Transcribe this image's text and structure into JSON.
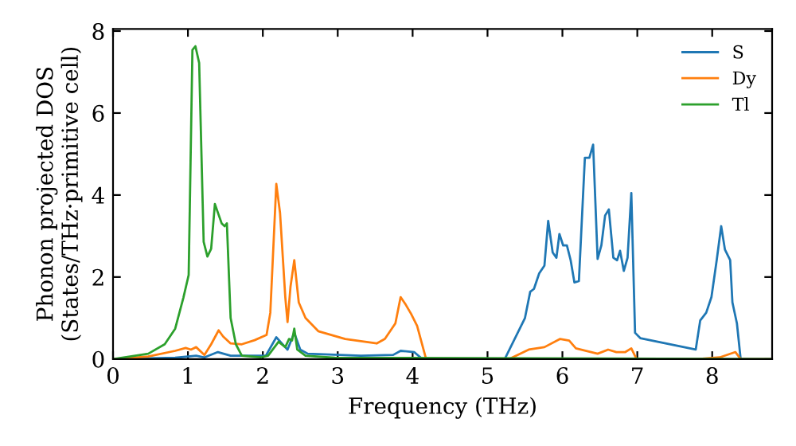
{
  "chart_data": {
    "type": "line",
    "xlabel": "Frequency (THz)",
    "ylabel": "Phonon projected DOS\n(States/THz·primitive cell)",
    "xlim": [
      0,
      8.8
    ],
    "ylim": [
      0,
      8.05
    ],
    "xticks": [
      0,
      1,
      2,
      3,
      4,
      5,
      6,
      7,
      8
    ],
    "yticks": [
      0,
      2,
      4,
      6,
      8
    ],
    "grid": false,
    "legend": "top right",
    "marker": "none",
    "line_style": "solid",
    "series": [
      {
        "name": "S",
        "color": "#1f77b4",
        "x": [
          0,
          0.83,
          1.11,
          1.22,
          1.4,
          1.57,
          2.04,
          2.18,
          2.28,
          2.33,
          2.42,
          2.5,
          2.6,
          3.31,
          3.74,
          3.84,
          4.02,
          4.13,
          5.23,
          5.5,
          5.57,
          5.62,
          5.69,
          5.76,
          5.81,
          5.87,
          5.92,
          5.96,
          6.01,
          6.06,
          6.11,
          6.16,
          6.22,
          6.3,
          6.36,
          6.41,
          6.47,
          6.52,
          6.57,
          6.62,
          6.68,
          6.73,
          6.77,
          6.82,
          6.87,
          6.92,
          6.97,
          7.04,
          7.78,
          7.84,
          7.92,
          7.99,
          8.06,
          8.12,
          8.17,
          8.24,
          8.27,
          8.33,
          8.38,
          8.8
        ],
        "values": [
          0,
          0.03,
          0.08,
          0.04,
          0.17,
          0.08,
          0.08,
          0.53,
          0.33,
          0.23,
          0.64,
          0.23,
          0.13,
          0.08,
          0.1,
          0.2,
          0.17,
          0,
          0,
          1.0,
          1.64,
          1.71,
          2.09,
          2.28,
          3.37,
          2.6,
          2.47,
          3.05,
          2.77,
          2.77,
          2.41,
          1.87,
          1.9,
          4.91,
          4.91,
          5.23,
          2.44,
          2.77,
          3.5,
          3.65,
          2.47,
          2.41,
          2.64,
          2.15,
          2.47,
          4.05,
          0.64,
          0.51,
          0.23,
          0.94,
          1.13,
          1.51,
          2.41,
          3.24,
          2.67,
          2.41,
          1.38,
          0.87,
          0,
          0
        ]
      },
      {
        "name": "Dy",
        "color": "#ff7f0e",
        "x": [
          0,
          0.47,
          0.83,
          0.97,
          1.04,
          1.11,
          1.22,
          1.31,
          1.41,
          1.47,
          1.57,
          1.72,
          1.89,
          2.05,
          2.1,
          2.18,
          2.23,
          2.3,
          2.33,
          2.37,
          2.42,
          2.48,
          2.57,
          2.74,
          3.1,
          3.52,
          3.63,
          3.77,
          3.84,
          3.91,
          3.98,
          4.06,
          4.18,
          5.29,
          5.55,
          5.76,
          5.97,
          6.09,
          6.18,
          6.47,
          6.61,
          6.72,
          6.84,
          6.92,
          6.99,
          7.8,
          8.1,
          8.31,
          8.38,
          8.8
        ],
        "values": [
          0,
          0.06,
          0.2,
          0.27,
          0.23,
          0.29,
          0.1,
          0.36,
          0.7,
          0.55,
          0.38,
          0.36,
          0.46,
          0.59,
          1.13,
          4.27,
          3.56,
          1.51,
          0.9,
          1.77,
          2.41,
          1.38,
          1.0,
          0.68,
          0.49,
          0.38,
          0.49,
          0.87,
          1.51,
          1.32,
          1.1,
          0.81,
          0,
          0,
          0.23,
          0.29,
          0.49,
          0.45,
          0.26,
          0.13,
          0.23,
          0.17,
          0.17,
          0.26,
          0,
          0,
          0.04,
          0.17,
          0,
          0
        ]
      },
      {
        "name": "Tl",
        "color": "#2ca02c",
        "x": [
          0,
          0.47,
          0.69,
          0.83,
          0.94,
          1.01,
          1.06,
          1.1,
          1.15,
          1.21,
          1.26,
          1.31,
          1.36,
          1.45,
          1.49,
          1.52,
          1.57,
          1.64,
          1.72,
          1.97,
          2.07,
          2.21,
          2.3,
          2.35,
          2.39,
          2.42,
          2.46,
          2.57,
          2.96,
          8.8
        ],
        "values": [
          0,
          0.13,
          0.36,
          0.74,
          1.5,
          2.05,
          7.54,
          7.63,
          7.22,
          2.86,
          2.5,
          2.69,
          3.78,
          3.31,
          3.24,
          3.31,
          1.0,
          0.36,
          0.08,
          0.04,
          0.08,
          0.42,
          0.29,
          0.49,
          0.45,
          0.74,
          0.23,
          0.08,
          0.03,
          0
        ]
      }
    ]
  }
}
